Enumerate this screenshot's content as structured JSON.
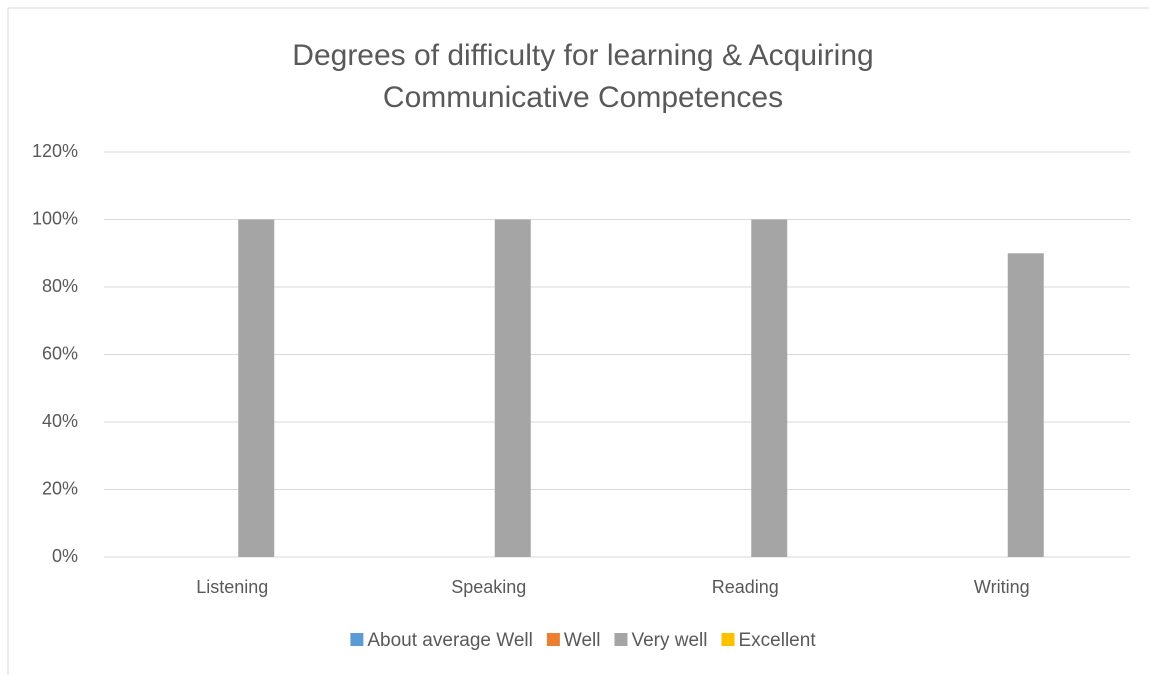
{
  "chart_data": {
    "type": "bar",
    "title": [
      "Degrees of difficulty for learning & Acquiring",
      "Communicative Competences"
    ],
    "categories": [
      "Listening",
      "Speaking",
      "Reading",
      "Writing"
    ],
    "series": [
      {
        "name": "About average Well",
        "color": "#5b9bd5",
        "values": [
          0,
          0,
          0,
          0
        ]
      },
      {
        "name": "Well",
        "color": "#ed7d31",
        "values": [
          0,
          0,
          0,
          0
        ]
      },
      {
        "name": "Very well",
        "color": "#a5a5a5",
        "values": [
          100,
          100,
          100,
          90
        ]
      },
      {
        "name": "Excellent",
        "color": "#ffc000",
        "values": [
          0,
          0,
          0,
          0
        ]
      }
    ],
    "ylim": [
      0,
      120
    ],
    "yticks": [
      {
        "value": 0,
        "label": "0%"
      },
      {
        "value": 20,
        "label": "20%"
      },
      {
        "value": 40,
        "label": "40%"
      },
      {
        "value": 60,
        "label": "60%"
      },
      {
        "value": 80,
        "label": "80%"
      },
      {
        "value": 100,
        "label": "100%"
      },
      {
        "value": 120,
        "label": "120%"
      }
    ],
    "grid": true,
    "legend": "bottom"
  }
}
